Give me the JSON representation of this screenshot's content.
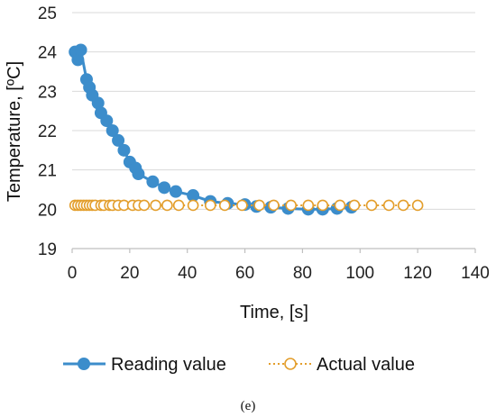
{
  "caption": "(e)",
  "chart_data": {
    "type": "line",
    "xlabel": "Time, [s]",
    "ylabel": "Temperature, [ºC]",
    "xlim": [
      0,
      140
    ],
    "ylim": [
      19,
      25
    ],
    "x_ticks": [
      0,
      20,
      40,
      60,
      80,
      100,
      120,
      140
    ],
    "y_ticks": [
      19,
      20,
      21,
      22,
      23,
      24,
      25
    ],
    "grid": "horizontal",
    "legend_position": "bottom",
    "series": [
      {
        "name": "Reading value",
        "color": "#3C8DCB",
        "line_style": "solid",
        "marker": "filled-circle",
        "points": [
          {
            "x": 1,
            "y": 24.0
          },
          {
            "x": 2,
            "y": 23.8
          },
          {
            "x": 3,
            "y": 24.05
          },
          {
            "x": 5,
            "y": 23.3
          },
          {
            "x": 6,
            "y": 23.1
          },
          {
            "x": 7,
            "y": 22.9
          },
          {
            "x": 9,
            "y": 22.7
          },
          {
            "x": 10,
            "y": 22.45
          },
          {
            "x": 12,
            "y": 22.25
          },
          {
            "x": 14,
            "y": 22.0
          },
          {
            "x": 16,
            "y": 21.75
          },
          {
            "x": 18,
            "y": 21.5
          },
          {
            "x": 20,
            "y": 21.2
          },
          {
            "x": 22,
            "y": 21.05
          },
          {
            "x": 23,
            "y": 20.9
          },
          {
            "x": 28,
            "y": 20.7
          },
          {
            "x": 32,
            "y": 20.55
          },
          {
            "x": 36,
            "y": 20.45
          },
          {
            "x": 42,
            "y": 20.35
          },
          {
            "x": 48,
            "y": 20.2
          },
          {
            "x": 54,
            "y": 20.15
          },
          {
            "x": 60,
            "y": 20.12
          },
          {
            "x": 64,
            "y": 20.07
          },
          {
            "x": 69,
            "y": 20.05
          },
          {
            "x": 75,
            "y": 20.02
          },
          {
            "x": 82,
            "y": 20.0
          },
          {
            "x": 87,
            "y": 20.0
          },
          {
            "x": 92,
            "y": 20.02
          },
          {
            "x": 97,
            "y": 20.05
          }
        ]
      },
      {
        "name": "Actual value",
        "color": "#E39E2C",
        "line_style": "dotted",
        "marker": "open-circle",
        "points": [
          {
            "x": 1,
            "y": 20.1
          },
          {
            "x": 2,
            "y": 20.1
          },
          {
            "x": 3,
            "y": 20.1
          },
          {
            "x": 4,
            "y": 20.1
          },
          {
            "x": 5,
            "y": 20.1
          },
          {
            "x": 6,
            "y": 20.1
          },
          {
            "x": 7,
            "y": 20.1
          },
          {
            "x": 8,
            "y": 20.1
          },
          {
            "x": 10,
            "y": 20.1
          },
          {
            "x": 11,
            "y": 20.1
          },
          {
            "x": 13,
            "y": 20.1
          },
          {
            "x": 14,
            "y": 20.1
          },
          {
            "x": 16,
            "y": 20.1
          },
          {
            "x": 18,
            "y": 20.1
          },
          {
            "x": 21,
            "y": 20.1
          },
          {
            "x": 23,
            "y": 20.1
          },
          {
            "x": 25,
            "y": 20.1
          },
          {
            "x": 29,
            "y": 20.1
          },
          {
            "x": 33,
            "y": 20.1
          },
          {
            "x": 37,
            "y": 20.1
          },
          {
            "x": 42,
            "y": 20.1
          },
          {
            "x": 48,
            "y": 20.1
          },
          {
            "x": 53,
            "y": 20.1
          },
          {
            "x": 59,
            "y": 20.1
          },
          {
            "x": 65,
            "y": 20.1
          },
          {
            "x": 70,
            "y": 20.1
          },
          {
            "x": 76,
            "y": 20.1
          },
          {
            "x": 82,
            "y": 20.1
          },
          {
            "x": 87,
            "y": 20.1
          },
          {
            "x": 93,
            "y": 20.1
          },
          {
            "x": 98,
            "y": 20.1
          },
          {
            "x": 104,
            "y": 20.1
          },
          {
            "x": 110,
            "y": 20.1
          },
          {
            "x": 115,
            "y": 20.1
          },
          {
            "x": 120,
            "y": 20.1
          }
        ]
      }
    ]
  }
}
